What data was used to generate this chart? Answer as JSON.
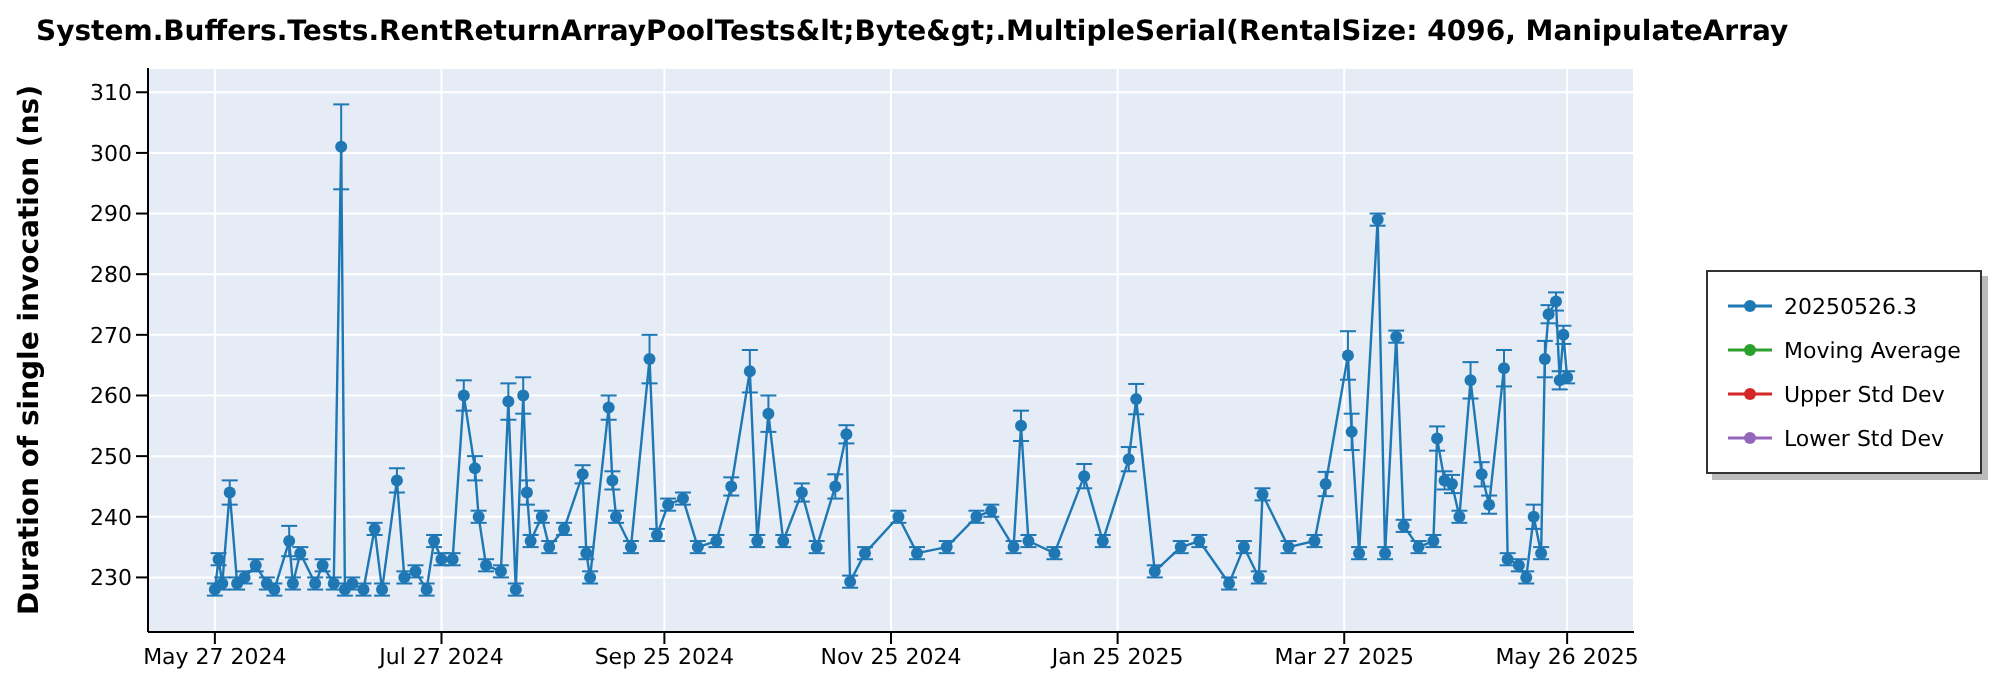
{
  "chart_data": {
    "type": "line",
    "title": "System.Buffers.Tests.RentReturnArrayPoolTests&lt;Byte&gt;.MultipleSerial(RentalSize: 4096, ManipulateArray",
    "ylabel": "Duration of single invocation (ns)",
    "x": [
      "2024-05-27",
      "2024-05-28",
      "2024-05-29",
      "2024-05-31",
      "2024-06-02",
      "2024-06-04",
      "2024-06-07",
      "2024-06-10",
      "2024-06-12",
      "2024-06-16",
      "2024-06-17",
      "2024-06-19",
      "2024-06-23",
      "2024-06-25",
      "2024-06-28",
      "2024-06-30",
      "2024-07-01",
      "2024-07-03",
      "2024-07-06",
      "2024-07-09",
      "2024-07-11",
      "2024-07-15",
      "2024-07-17",
      "2024-07-20",
      "2024-07-23",
      "2024-07-25",
      "2024-07-27",
      "2024-07-30",
      "2024-08-02",
      "2024-08-05",
      "2024-08-06",
      "2024-08-08",
      "2024-08-12",
      "2024-08-14",
      "2024-08-16",
      "2024-08-18",
      "2024-08-19",
      "2024-08-20",
      "2024-08-23",
      "2024-08-25",
      "2024-08-29",
      "2024-09-03",
      "2024-09-04",
      "2024-09-05",
      "2024-09-10",
      "2024-09-11",
      "2024-09-12",
      "2024-09-16",
      "2024-09-21",
      "2024-09-23",
      "2024-09-26",
      "2024-09-30",
      "2024-10-04",
      "2024-10-09",
      "2024-10-13",
      "2024-10-18",
      "2024-10-20",
      "2024-10-23",
      "2024-10-27",
      "2024-11-01",
      "2024-11-05",
      "2024-11-10",
      "2024-11-13",
      "2024-11-14",
      "2024-11-18",
      "2024-11-27",
      "2024-12-02",
      "2024-12-10",
      "2024-12-18",
      "2024-12-22",
      "2024-12-28",
      "2024-12-30",
      "2025-01-01",
      "2025-01-08",
      "2025-01-16",
      "2025-01-21",
      "2025-01-28",
      "2025-01-30",
      "2025-02-04",
      "2025-02-11",
      "2025-02-16",
      "2025-02-24",
      "2025-02-28",
      "2025-03-04",
      "2025-03-05",
      "2025-03-12",
      "2025-03-19",
      "2025-03-22",
      "2025-03-28",
      "2025-03-29",
      "2025-03-31",
      "2025-04-05",
      "2025-04-07",
      "2025-04-10",
      "2025-04-12",
      "2025-04-16",
      "2025-04-20",
      "2025-04-21",
      "2025-04-23",
      "2025-04-25",
      "2025-04-27",
      "2025-04-30",
      "2025-05-03",
      "2025-05-05",
      "2025-05-09",
      "2025-05-10",
      "2025-05-13",
      "2025-05-15",
      "2025-05-17",
      "2025-05-19",
      "2025-05-20",
      "2025-05-21",
      "2025-05-23",
      "2025-05-24",
      "2025-05-25",
      "2025-05-26"
    ],
    "series": [
      {
        "name": "20250526.3",
        "color": "#1f77b4",
        "values": [
          228,
          233,
          229,
          244,
          229,
          230,
          232,
          229,
          228,
          236,
          229,
          234,
          229,
          232,
          229,
          301,
          228,
          229,
          228,
          238,
          228,
          246,
          230,
          231,
          228,
          236,
          233,
          233,
          260,
          248,
          240,
          232,
          231,
          259,
          228,
          260,
          244,
          236,
          240,
          235,
          238,
          247,
          234,
          230,
          258,
          246,
          240,
          235,
          266,
          237,
          242,
          243,
          235,
          236,
          245,
          264,
          236,
          257,
          236,
          244,
          235,
          245,
          253.6,
          229.3,
          234,
          240,
          234,
          235,
          240,
          241,
          235,
          255,
          236,
          234,
          246.7,
          236,
          249.5,
          259.4,
          231,
          235,
          236,
          229,
          235,
          230,
          243.7,
          235,
          236,
          245.4,
          266.6,
          254,
          234,
          289,
          234,
          269.7,
          238.5,
          235,
          236,
          252.9,
          246,
          245.4,
          240,
          262.5,
          247,
          242,
          264.5,
          233,
          232,
          230,
          240,
          234,
          266,
          273.4,
          275.5,
          262.5,
          270,
          263
        ],
        "errors": [
          1,
          1,
          1,
          2,
          1,
          1,
          1,
          1,
          1,
          2.5,
          1,
          1,
          1,
          1,
          1,
          7,
          1,
          1,
          1,
          1,
          1,
          2,
          1,
          1,
          1,
          1,
          1,
          1,
          2.5,
          2,
          1,
          1,
          1,
          3,
          1,
          3,
          2,
          1,
          1,
          1,
          1,
          1.5,
          1,
          1,
          2,
          1.5,
          1,
          1,
          4,
          1,
          1,
          1,
          1,
          1,
          1.5,
          3.5,
          1,
          3,
          1,
          1.5,
          1,
          2,
          1.5,
          1,
          1,
          1,
          1,
          1,
          1,
          1,
          1,
          2.5,
          1,
          1,
          2,
          1,
          2,
          2.5,
          1,
          1,
          1,
          1,
          1,
          1,
          1,
          1,
          1,
          2,
          4,
          3,
          1,
          1,
          1,
          1,
          1,
          1,
          1,
          2,
          1.5,
          1.5,
          1,
          3,
          2,
          1.5,
          3,
          1,
          1,
          1,
          2,
          1,
          3,
          1.5,
          1.5,
          1.5,
          1.5,
          1
        ]
      },
      {
        "name": "Moving Average",
        "color": "#2ca02c",
        "values": [
          null,
          null,
          null,
          null,
          null,
          null,
          null,
          null,
          null,
          null,
          null,
          null,
          null,
          null,
          null,
          null,
          null,
          null,
          null,
          null,
          null,
          null,
          null,
          null,
          null,
          null,
          null,
          null,
          null,
          null,
          null,
          null,
          null,
          null,
          null,
          null,
          null,
          null,
          null,
          null,
          null,
          null,
          null,
          null,
          null,
          null,
          null,
          null,
          null,
          null,
          null,
          null,
          null,
          null,
          null,
          null,
          null,
          null,
          null,
          null,
          null,
          null,
          null,
          null,
          null,
          null,
          null,
          null,
          null,
          null,
          null,
          null,
          null,
          null,
          null,
          null,
          null,
          null,
          null,
          null,
          null,
          null,
          null,
          null,
          null,
          null,
          null,
          null,
          null,
          null,
          null,
          null,
          null,
          null,
          null,
          null,
          null,
          null,
          null,
          null,
          null,
          null,
          null,
          null,
          null,
          null,
          null,
          null,
          null,
          null,
          null,
          null,
          null,
          null,
          null,
          null
        ]
      },
      {
        "name": "Upper Std Dev",
        "color": "#d62728",
        "values": [
          null,
          null,
          null,
          null,
          null,
          null,
          null,
          null,
          null,
          null,
          null,
          null,
          null,
          null,
          null,
          null,
          null,
          null,
          null,
          null,
          null,
          null,
          null,
          null,
          null,
          null,
          null,
          null,
          null,
          null,
          null,
          null,
          null,
          null,
          null,
          null,
          null,
          null,
          null,
          null,
          null,
          null,
          null,
          null,
          null,
          null,
          null,
          null,
          null,
          null,
          null,
          null,
          null,
          null,
          null,
          null,
          null,
          null,
          null,
          null,
          null,
          null,
          null,
          null,
          null,
          null,
          null,
          null,
          null,
          null,
          null,
          null,
          null,
          null,
          null,
          null,
          null,
          null,
          null,
          null,
          null,
          null,
          null,
          null,
          null,
          null,
          null,
          null,
          null,
          null,
          null,
          null,
          null,
          null,
          null,
          null,
          null,
          null,
          null,
          null,
          null,
          null,
          null,
          null,
          null,
          null,
          null,
          null,
          null,
          null,
          null,
          null,
          null,
          null,
          null,
          null
        ]
      },
      {
        "name": "Lower Std Dev",
        "color": "#9467bd",
        "values": [
          null,
          null,
          null,
          null,
          null,
          null,
          null,
          null,
          null,
          null,
          null,
          null,
          null,
          null,
          null,
          null,
          null,
          null,
          null,
          null,
          null,
          null,
          null,
          null,
          null,
          null,
          null,
          null,
          null,
          null,
          null,
          null,
          null,
          null,
          null,
          null,
          null,
          null,
          null,
          null,
          null,
          null,
          null,
          null,
          null,
          null,
          null,
          null,
          null,
          null,
          null,
          null,
          null,
          null,
          null,
          null,
          null,
          null,
          null,
          null,
          null,
          null,
          null,
          null,
          null,
          null,
          null,
          null,
          null,
          null,
          null,
          null,
          null,
          null,
          null,
          null,
          null,
          null,
          null,
          null,
          null,
          null,
          null,
          null,
          null,
          null,
          null,
          null,
          null,
          null,
          null,
          null,
          null,
          null,
          null,
          null,
          null,
          null,
          null,
          null,
          null,
          null,
          null,
          null,
          null,
          null,
          null,
          null,
          null,
          null,
          null,
          null,
          null,
          null,
          null,
          null
        ]
      }
    ],
    "xlim": [
      "2024-05-09",
      "2025-06-13"
    ],
    "xticks": [
      {
        "value": "2024-05-27",
        "label": "May 27 2024"
      },
      {
        "value": "2024-07-27",
        "label": "Jul 27 2024"
      },
      {
        "value": "2024-09-25",
        "label": "Sep 25 2024"
      },
      {
        "value": "2024-11-25",
        "label": "Nov 25 2024"
      },
      {
        "value": "2025-01-25",
        "label": "Jan 25 2025"
      },
      {
        "value": "2025-03-27",
        "label": "Mar 27 2025"
      },
      {
        "value": "2025-05-26",
        "label": "May 26 2025"
      }
    ],
    "ylim": [
      221,
      314
    ],
    "yticks": [
      230,
      240,
      250,
      260,
      270,
      280,
      290,
      300,
      310
    ],
    "grid": true,
    "legend": "right",
    "marker": "circle"
  }
}
